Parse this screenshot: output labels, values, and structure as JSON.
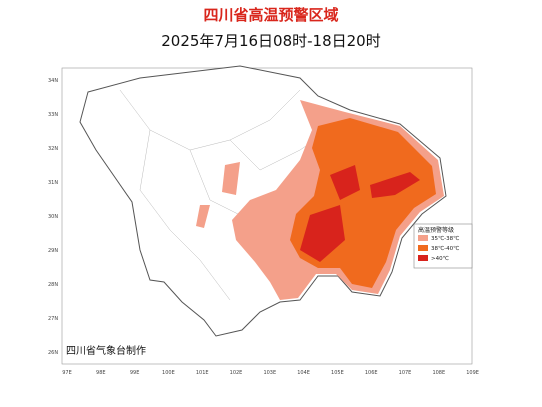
{
  "title": "四川省高温预警区域",
  "subtitle": "2025年7月16日08时-18日20时",
  "map": {
    "lat_labels": [
      "34N",
      "33N",
      "32N",
      "31N",
      "30N",
      "29N",
      "28N",
      "27N",
      "26N"
    ],
    "lon_labels": [
      "97E",
      "98E",
      "99E",
      "100E",
      "101E",
      "102E",
      "103E",
      "104E",
      "105E",
      "106E",
      "107E",
      "108E",
      "109E"
    ]
  },
  "legend": {
    "title": "高温预警等级",
    "items": [
      {
        "label": "35℃-38℃",
        "color": "#f4a08a"
      },
      {
        "label": "38℃-40℃",
        "color": "#f06a1e"
      },
      {
        "label": ">40℃",
        "color": "#d8231c"
      }
    ]
  },
  "credit": "四川省气象台制作"
}
